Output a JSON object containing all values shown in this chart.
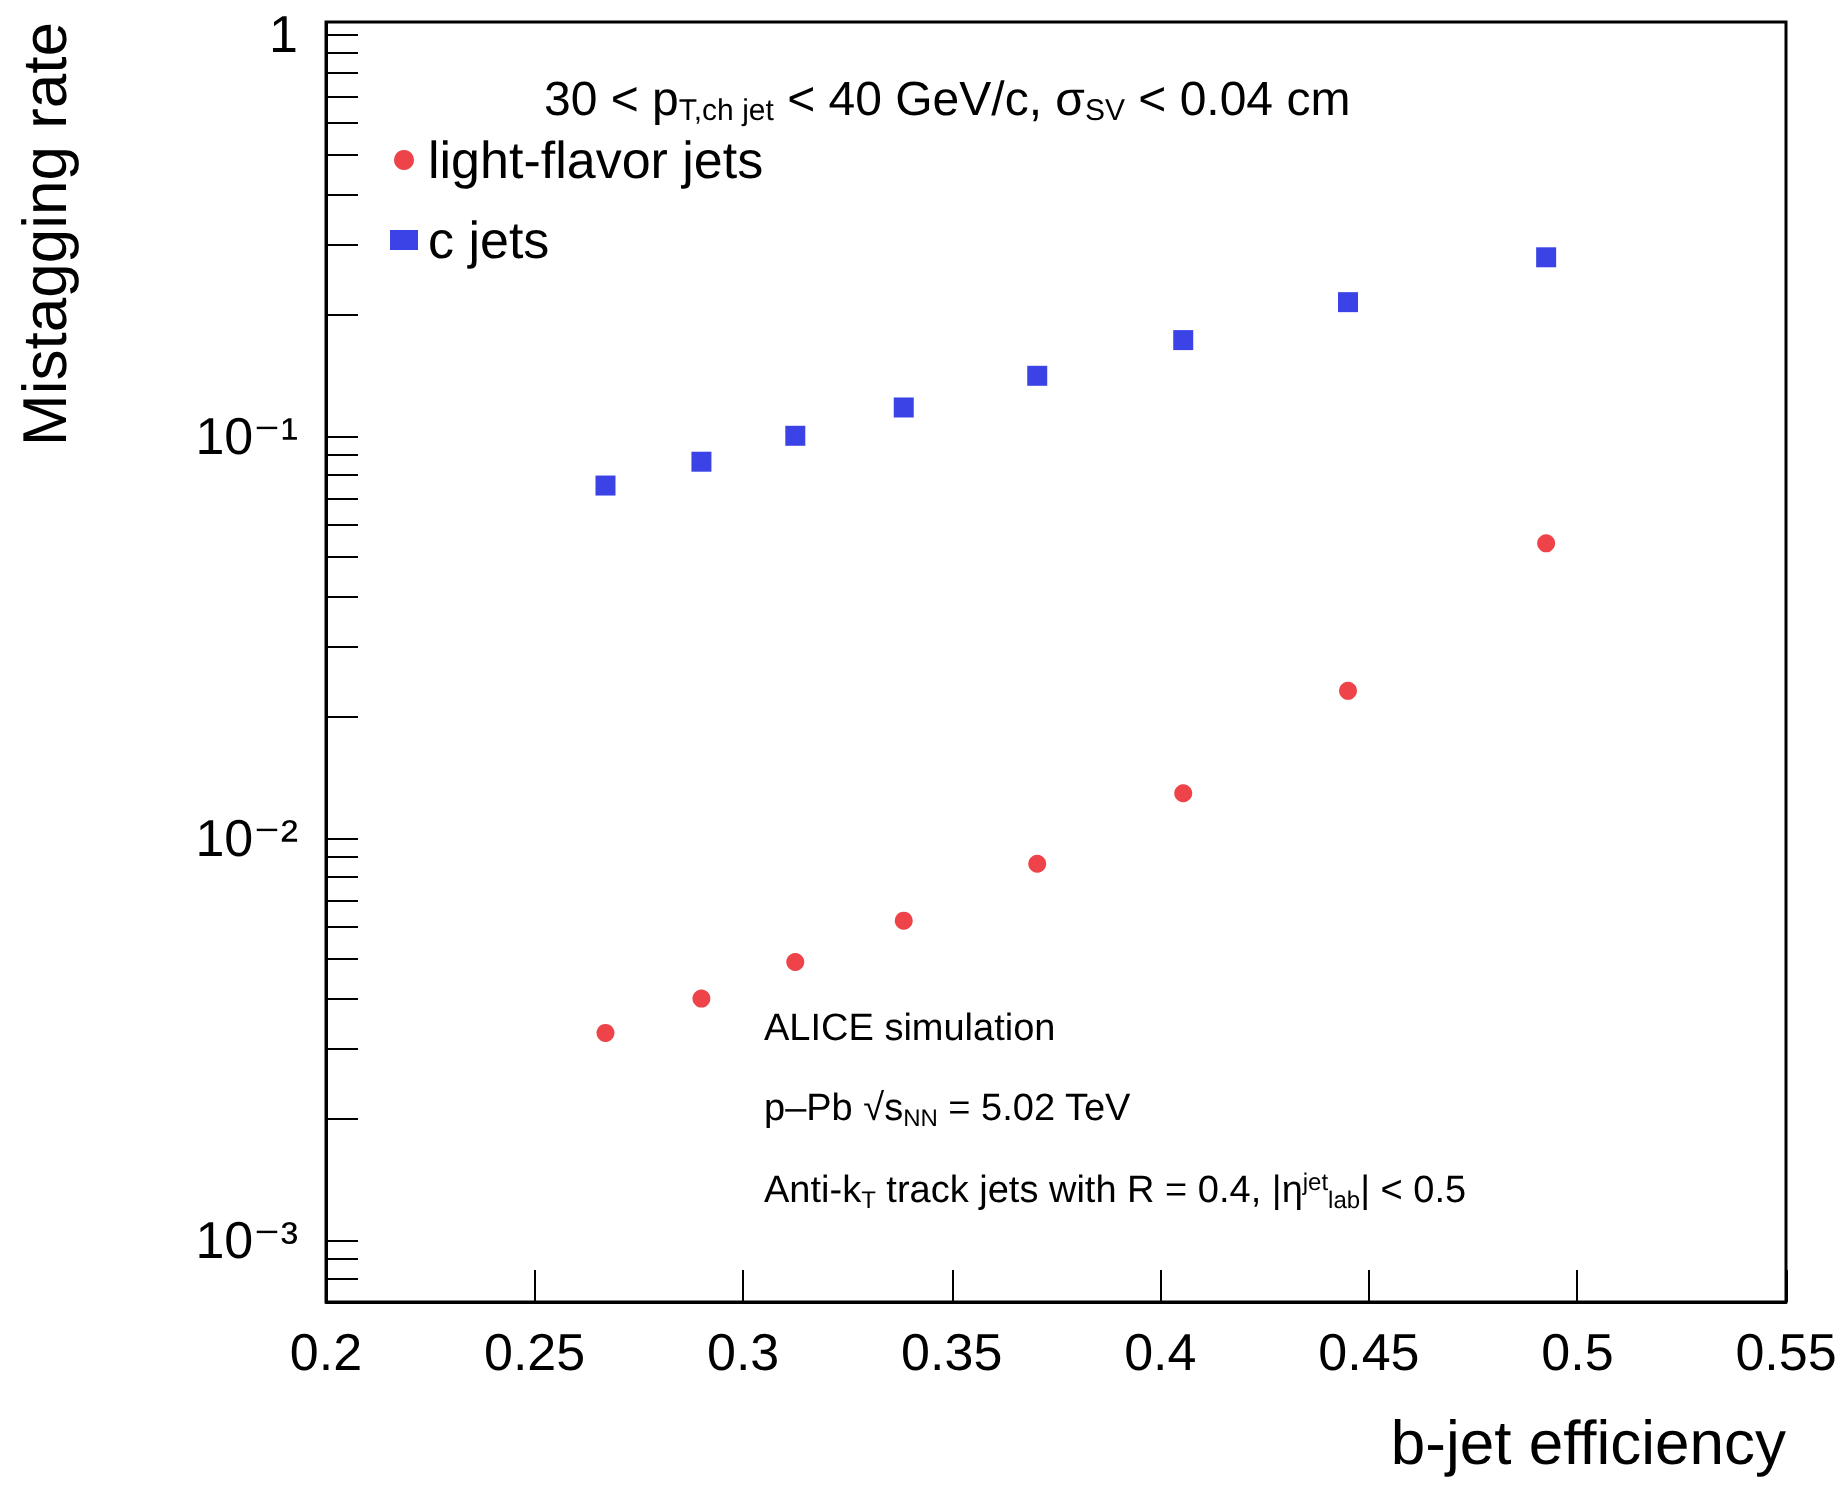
{
  "chart_data": {
    "type": "scatter",
    "title": "30 < p$_{T,ch jet}$ < 40 GeV/c, σ$_{SV}$ < 0.04 cm",
    "xlabel": "b-jet efficiency",
    "ylabel": "Mistagging rate",
    "annotations": [
      "ALICE simulation",
      "p–Pb √s$_{NN}$ = 5.02 TeV",
      "Anti-k$_{T}$ track jets with R = 0.4, |η$^{jet}$$_{lab}$| < 0.5"
    ],
    "x": [
      0.267,
      0.29,
      0.3125,
      0.3385,
      0.3705,
      0.4055,
      0.445,
      0.4925
    ],
    "series": [
      {
        "name": "light-flavor jets",
        "color": "#e8141c",
        "marker": "circle",
        "values": [
          0.00327,
          0.00398,
          0.00491,
          0.00622,
          0.00862,
          0.0129,
          0.0232,
          0.054
        ]
      },
      {
        "name": "c jets",
        "color": "#0b14e0",
        "marker": "square",
        "values": [
          0.0752,
          0.0862,
          0.1,
          0.1176,
          0.141,
          0.173,
          0.215,
          0.278
        ]
      }
    ],
    "xlim": [
      0.2,
      0.55
    ],
    "xticks": [
      0.2,
      0.25,
      0.3,
      0.35,
      0.4,
      0.45,
      0.5,
      0.55
    ],
    "ylim": [
      0.0007,
      1.07
    ],
    "yticks": [
      {
        "value": 0.001,
        "label": "10⁻³"
      },
      {
        "value": 0.01,
        "label": "10⁻²"
      },
      {
        "value": 0.1,
        "label": "10⁻¹"
      },
      1
    ],
    "log": "y",
    "grid": false,
    "legend": "top left"
  }
}
